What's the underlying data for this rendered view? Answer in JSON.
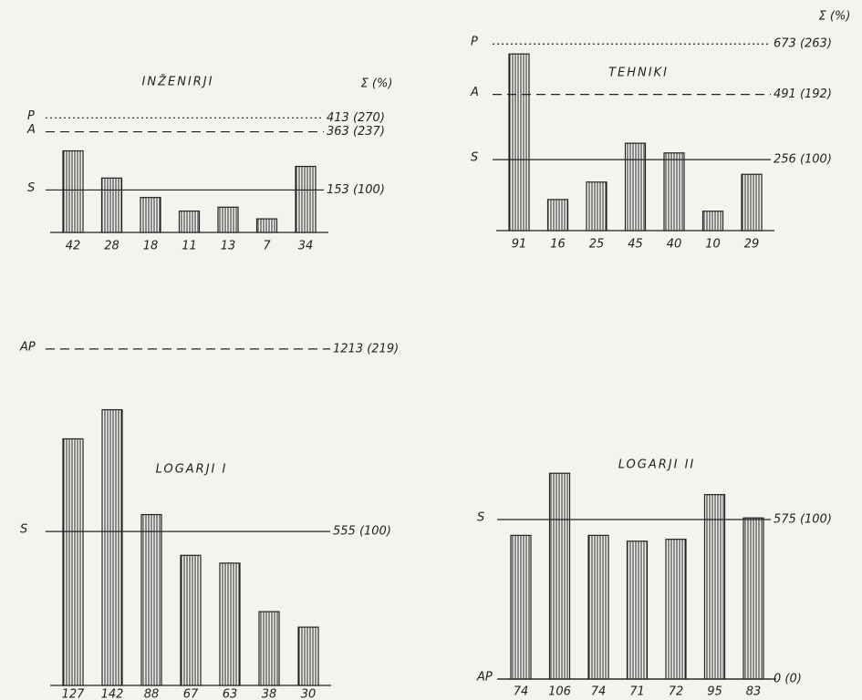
{
  "chart_data": [
    {
      "type": "bar",
      "title": "INŽENIRJI",
      "sum_header": "Σ (%)",
      "values": [
        42,
        28,
        18,
        11,
        13,
        7,
        34
      ],
      "lines": [
        {
          "name": "P",
          "value": 413,
          "label": "413 (270)",
          "style": "dotted"
        },
        {
          "name": "A",
          "value": 363,
          "label": "363 (237)",
          "style": "dashed"
        },
        {
          "name": "S",
          "value": 153,
          "label": "153 (100)",
          "style": "solid"
        }
      ]
    },
    {
      "type": "bar",
      "title": "TEHNIKI",
      "sum_header": "Σ (%)",
      "values": [
        91,
        16,
        25,
        45,
        40,
        10,
        29
      ],
      "lines": [
        {
          "name": "P",
          "value": 673,
          "label": "673 (263)",
          "style": "dotted"
        },
        {
          "name": "A",
          "value": 491,
          "label": "491 (192)",
          "style": "dashed"
        },
        {
          "name": "S",
          "value": 256,
          "label": "256 (100)",
          "style": "solid"
        }
      ]
    },
    {
      "type": "bar",
      "title": "LOGARJI I",
      "values": [
        127,
        142,
        88,
        67,
        63,
        38,
        30
      ],
      "lines": [
        {
          "name": "AP",
          "value": 1213,
          "label": "1213 (219)",
          "style": "dashed"
        },
        {
          "name": "S",
          "value": 555,
          "label": "555 (100)",
          "style": "solid"
        }
      ]
    },
    {
      "type": "bar",
      "title": "LOGARJI II",
      "values": [
        74,
        106,
        74,
        71,
        72,
        95,
        83
      ],
      "lines": [
        {
          "name": "S",
          "value": 575,
          "label": "575 (100)",
          "style": "solid"
        },
        {
          "name": "AP",
          "value": 0,
          "label": "0 (0)",
          "style": "solid"
        }
      ]
    }
  ]
}
